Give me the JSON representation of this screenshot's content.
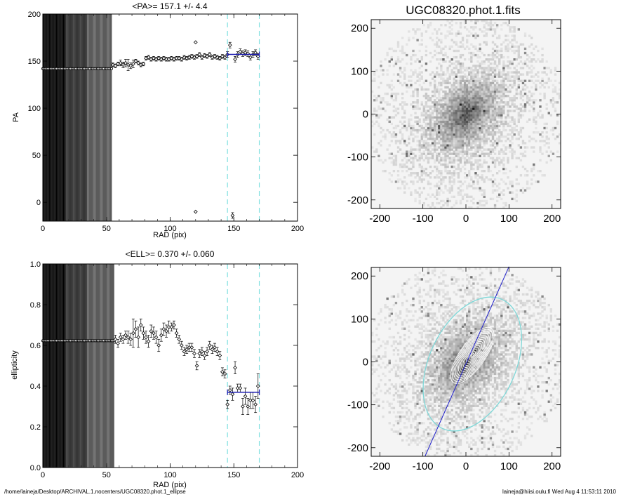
{
  "chart_data": [
    {
      "id": "pa",
      "type": "scatter",
      "title": "<PA>= 157.1 +/-   4.4",
      "xlabel": "RAD (pix)",
      "ylabel": "PA",
      "xlim": [
        0,
        200
      ],
      "ylim": [
        -20,
        200
      ],
      "xticks": [
        "0",
        "50",
        "100",
        "150",
        "200"
      ],
      "yticks": [
        "0",
        "50",
        "100",
        "150",
        "200"
      ],
      "xtick_values": [
        0,
        50,
        100,
        150,
        200
      ],
      "ytick_values": [
        0,
        50,
        100,
        150,
        200
      ],
      "reference_lines_x": [
        145,
        170
      ],
      "mean_fit": {
        "x0": 145,
        "x1": 170,
        "y": 157.1
      },
      "flat_segment": {
        "x0": 0,
        "x1": 54,
        "y": 142
      },
      "series": [
        {
          "x": [
            55,
            57,
            59,
            61,
            63,
            65,
            67,
            69,
            71,
            73,
            75,
            77,
            79,
            81,
            83,
            85,
            87,
            89,
            91,
            93,
            95,
            97,
            99,
            101,
            103,
            105,
            107,
            109,
            111,
            113,
            115,
            117,
            119,
            121,
            123,
            125,
            127,
            129,
            131,
            133,
            135,
            137,
            139,
            141,
            143,
            145,
            147,
            149,
            151,
            153,
            155,
            157,
            159,
            161,
            163,
            165,
            167,
            169
          ],
          "y": [
            146,
            145,
            147,
            148,
            146,
            148,
            146,
            145,
            147,
            150,
            148,
            146,
            147,
            153,
            154,
            152,
            153,
            152,
            153,
            152,
            153,
            152,
            152,
            153,
            152,
            153,
            153,
            152,
            154,
            153,
            154,
            155,
            154,
            155,
            157,
            154,
            156,
            155,
            157,
            154,
            155,
            154,
            153,
            155,
            154,
            157,
            167,
            -14,
            152,
            157,
            160,
            158,
            159,
            158,
            154,
            157,
            159,
            155
          ],
          "yerr": [
            2,
            2,
            2,
            3,
            3,
            4,
            6,
            3,
            4,
            2,
            2,
            2,
            2,
            2,
            2,
            2,
            2,
            2,
            2,
            2,
            2,
            2,
            2,
            2,
            2,
            2,
            2,
            2,
            2,
            2,
            2,
            2,
            2,
            2,
            2,
            2,
            2,
            2,
            2,
            2,
            2,
            2,
            2,
            2,
            2,
            3,
            3,
            3,
            3,
            3,
            3,
            3,
            3,
            3,
            3,
            3,
            3,
            3
          ]
        }
      ],
      "outliers": [
        {
          "x": 120,
          "y": 170
        },
        {
          "x": 120,
          "y": -10
        }
      ]
    },
    {
      "id": "ell",
      "type": "scatter",
      "title": "<ELL>= 0.370 +/-  0.060",
      "xlabel": "RAD (pix)",
      "ylabel": "ellipticity",
      "xlim": [
        0,
        200
      ],
      "ylim": [
        0,
        1
      ],
      "xticks": [
        "0",
        "50",
        "100",
        "150",
        "200"
      ],
      "yticks": [
        "0.0",
        "0.2",
        "0.4",
        "0.6",
        "0.8",
        "1.0"
      ],
      "xtick_values": [
        0,
        50,
        100,
        150,
        200
      ],
      "ytick_values": [
        0,
        0.2,
        0.4,
        0.6,
        0.8,
        1.0
      ],
      "reference_lines_x": [
        145,
        170
      ],
      "mean_fit": {
        "x0": 145,
        "x1": 170,
        "y": 0.37
      },
      "flat_segment": {
        "x0": 0,
        "x1": 56,
        "y": 0.623
      },
      "series": [
        {
          "x": [
            57,
            59,
            61,
            63,
            65,
            67,
            69,
            71,
            73,
            75,
            77,
            79,
            81,
            83,
            85,
            87,
            89,
            91,
            93,
            95,
            97,
            99,
            101,
            103,
            105,
            107,
            109,
            111,
            113,
            115,
            117,
            119,
            121,
            123,
            125,
            127,
            129,
            131,
            133,
            135,
            137,
            139,
            141,
            143,
            145,
            147,
            149,
            151,
            153,
            155,
            157,
            159,
            161,
            163,
            165,
            167,
            169
          ],
          "y": [
            0.63,
            0.61,
            0.64,
            0.63,
            0.65,
            0.64,
            0.63,
            0.66,
            0.68,
            0.64,
            0.7,
            0.66,
            0.64,
            0.62,
            0.67,
            0.66,
            0.64,
            0.6,
            0.65,
            0.68,
            0.67,
            0.69,
            0.69,
            0.7,
            0.66,
            0.63,
            0.6,
            0.57,
            0.58,
            0.59,
            0.59,
            0.56,
            0.5,
            0.56,
            0.57,
            0.55,
            0.57,
            0.6,
            0.58,
            0.59,
            0.57,
            0.55,
            0.47,
            0.46,
            0.31,
            0.38,
            0.36,
            0.49,
            0.39,
            0.39,
            0.3,
            0.35,
            0.3,
            0.33,
            0.33,
            0.31,
            0.4
          ],
          "yerr": [
            0.02,
            0.02,
            0.02,
            0.02,
            0.02,
            0.03,
            0.03,
            0.07,
            0.04,
            0.05,
            0.03,
            0.03,
            0.03,
            0.03,
            0.03,
            0.03,
            0.03,
            0.03,
            0.03,
            0.03,
            0.03,
            0.03,
            0.02,
            0.02,
            0.02,
            0.02,
            0.02,
            0.02,
            0.02,
            0.02,
            0.02,
            0.02,
            0.02,
            0.02,
            0.02,
            0.02,
            0.02,
            0.02,
            0.02,
            0.02,
            0.02,
            0.02,
            0.02,
            0.02,
            0.02,
            0.02,
            0.03,
            0.03,
            0.02,
            0.02,
            0.04,
            0.04,
            0.04,
            0.04,
            0.04,
            0.04,
            0.06
          ]
        }
      ]
    },
    {
      "id": "img-top",
      "type": "heatmap",
      "title": "UGC08320.phot.1.fits",
      "xlim": [
        -220,
        220
      ],
      "ylim": [
        -220,
        220
      ],
      "xticks": [
        "-200",
        "-100",
        "0",
        "100",
        "200"
      ],
      "yticks": [
        "-200",
        "-100",
        "0",
        "100",
        "200"
      ],
      "xtick_values": [
        -200,
        -100,
        0,
        100,
        200
      ],
      "ytick_values": [
        -200,
        -100,
        0,
        100,
        200
      ]
    },
    {
      "id": "img-bottom",
      "type": "heatmap",
      "title": "",
      "xlim": [
        -220,
        220
      ],
      "ylim": [
        -220,
        220
      ],
      "xticks": [
        "-200",
        "-100",
        "0",
        "100",
        "200"
      ],
      "yticks": [
        "-200",
        "-100",
        "0",
        "100",
        "200"
      ],
      "xtick_values": [
        -200,
        -100,
        0,
        100,
        200
      ],
      "ytick_values": [
        -200,
        -100,
        0,
        100,
        200
      ],
      "overlay_line_color": "#2020cc",
      "outer_contour_color": "#7fd8d8"
    }
  ],
  "footer": {
    "left": "/home/laineja/Desktop/ARCHIVAL.1.nocenters/UGC08320.phot.1_ellipse",
    "right": "laineja@hiisi.oulu.fi  Wed Aug  4 11:53:11 2010"
  },
  "colors": {
    "dashed_reference": "#7fe0e0",
    "fit_line": "#1a1ab0",
    "markers": "#000000"
  }
}
